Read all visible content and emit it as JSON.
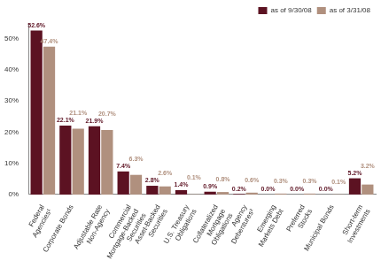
{
  "chart_data": {
    "type": "bar",
    "categories": [
      "Federal Agencies¹",
      "Corporate Bonds",
      "Adjustable Rate Non-Agency",
      "Commercial Mortgage-Backed Securities",
      "Asset-Backed Securities",
      "U.S. Treasury Obligations",
      "Collateralized Mortgage Obligations",
      "Agency Debentures²",
      "Emerging Markets Debt",
      "Preferred Stocks",
      "Municipal Bonds",
      "Short-term Investments"
    ],
    "series": [
      {
        "name": "as of 9/30/08",
        "color": "#5c1222",
        "values": [
          52.6,
          22.1,
          21.9,
          7.4,
          2.8,
          1.4,
          0.9,
          0.2,
          0.0,
          0.0,
          0.0,
          5.2
        ],
        "value_labels": [
          "52.6%",
          "22.1%",
          "21.9%",
          "7.4%",
          "2.8%",
          "1.4%",
          "0.9%",
          "0.2%",
          "0.0%",
          "0.0%",
          "0.0%",
          "5.2%"
        ]
      },
      {
        "name": "as of 3/31/08",
        "color": "#b0907e",
        "values": [
          47.4,
          21.1,
          20.7,
          6.3,
          2.6,
          0.1,
          0.8,
          0.6,
          0.3,
          0.3,
          0.1,
          3.2
        ],
        "value_labels": [
          "47.4%",
          "21.1%",
          "20.7%",
          "6.3%",
          "2.6%",
          "0.1%",
          "0.8%",
          "0.6%",
          "0.3%",
          "0.3%",
          "0.1%",
          "3.2%"
        ]
      }
    ],
    "ylim": [
      0,
      55
    ],
    "yticks": [
      {
        "value": 0,
        "label": "0%"
      },
      {
        "value": 10,
        "label": "10%"
      },
      {
        "value": 20,
        "label": "20%"
      },
      {
        "value": 30,
        "label": "30%"
      },
      {
        "value": 40,
        "label": "40%"
      },
      {
        "value": 50,
        "label": "50%"
      }
    ],
    "grid": false,
    "legend": "top-right",
    "data_labels": true
  }
}
